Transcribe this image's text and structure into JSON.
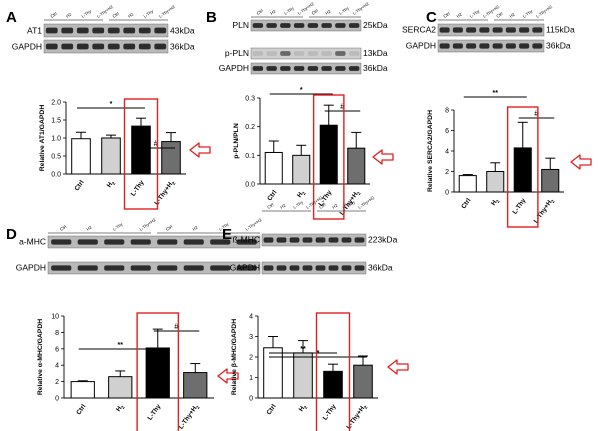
{
  "chart_data": [
    {
      "panel": "A",
      "type": "bar",
      "categories": [
        "Ctrl",
        "H2",
        "L-Thy",
        "L-Thy+H2"
      ],
      "values": [
        0.98,
        1.0,
        1.33,
        0.9
      ],
      "errors": [
        0.18,
        0.08,
        0.22,
        0.25
      ],
      "ylabel": "Relative AT1/GAPDH",
      "ylim": [
        0,
        2.0
      ],
      "yticks": [
        "0.0",
        "0.5",
        "1.0",
        "1.5",
        "2.0"
      ],
      "significance": [
        {
          "from": 0,
          "to": 2,
          "label": "*"
        },
        {
          "from": 2,
          "to": 3,
          "label": "#"
        }
      ],
      "blots": [
        {
          "label": "AT1",
          "size": "43kDa"
        },
        {
          "label": "GAPDH",
          "size": "36kDa"
        }
      ],
      "lane_labels": [
        "Ctrl",
        "H2",
        "L-Thy",
        "L-Thy+H2",
        "Ctrl",
        "H2",
        "L-Thy",
        "L-Thy+H2"
      ],
      "highlight_index": 2,
      "arrow_index": 3
    },
    {
      "panel": "B",
      "type": "bar",
      "categories": [
        "Ctrl",
        "H2",
        "L-Thy",
        "L-Thy+H2"
      ],
      "values": [
        0.11,
        0.1,
        0.205,
        0.125
      ],
      "errors": [
        0.04,
        0.035,
        0.07,
        0.055
      ],
      "ylabel": "p-PLN/PLN",
      "ylim": [
        0,
        0.3
      ],
      "yticks": [
        "0.0",
        "0.1",
        "0.2",
        "0.3"
      ],
      "significance": [
        {
          "from": 0,
          "to": 2,
          "label": "*"
        },
        {
          "from": 2,
          "to": 3,
          "label": "#"
        }
      ],
      "blots": [
        {
          "label": "PLN",
          "size": "25kDa"
        },
        {
          "label": "p-PLN",
          "size": "13kDa"
        },
        {
          "label": "GAPDH",
          "size": "36kDa"
        }
      ],
      "lane_labels": [
        "Ctrl",
        "H2",
        "L-Thy",
        "L-Thy+H2",
        "Ctrl",
        "H2",
        "L-Thy",
        "L-Thy+H2"
      ],
      "highlight_index": 2,
      "arrow_index": 3
    },
    {
      "panel": "C",
      "type": "bar",
      "categories": [
        "Ctrl",
        "H2",
        "L-Thy",
        "L-Thy+H2"
      ],
      "values": [
        1.6,
        2.0,
        4.3,
        2.2
      ],
      "errors": [
        0.1,
        0.85,
        2.5,
        1.1
      ],
      "ylabel": "Relative SERCA2/GAPDH",
      "ylim": [
        0,
        8
      ],
      "yticks": [
        "0",
        "2",
        "4",
        "6",
        "8"
      ],
      "significance": [
        {
          "from": 0,
          "to": 2,
          "label": "**"
        },
        {
          "from": 2,
          "to": 3,
          "label": "#"
        }
      ],
      "blots": [
        {
          "label": "SERCA2",
          "size": "115kDa"
        },
        {
          "label": "GAPDH",
          "size": "36kDa"
        }
      ],
      "lane_labels": [
        "Ctrl",
        "H2",
        "L-Thy",
        "L-Thy+H2",
        "Ctrl",
        "H2",
        "L-Thy",
        "L-Thy+H2"
      ],
      "highlight_index": 2,
      "arrow_index": 3
    },
    {
      "panel": "D",
      "type": "bar",
      "categories": [
        "Ctrl",
        "H2",
        "L-Thy",
        "L-Thy+H2"
      ],
      "values": [
        2.0,
        2.6,
        6.1,
        3.1
      ],
      "errors": [
        0.1,
        0.7,
        2.3,
        1.1
      ],
      "ylabel": "Relative α-MHC/GAPDH",
      "ylim": [
        0,
        10
      ],
      "yticks": [
        "0",
        "2",
        "4",
        "6",
        "8",
        "10"
      ],
      "significance": [
        {
          "from": 0,
          "to": 2,
          "label": "**"
        },
        {
          "from": 2,
          "to": 3,
          "label": "#"
        }
      ],
      "blots": [
        {
          "label": "a-MHC",
          "size": "223kDa"
        },
        {
          "label": "GAPDH",
          "size": "36kDa"
        }
      ],
      "lane_labels": [
        "Ctrl",
        "H2",
        "L-Thy",
        "L-Thy+H2",
        "Ctrl",
        "H2",
        "L-Thy",
        "L-Thy+H2"
      ],
      "highlight_index": 2,
      "arrow_index": 3
    },
    {
      "panel": "E",
      "type": "bar",
      "categories": [
        "Ctrl",
        "H2",
        "L-Thy",
        "L-Thy+H2"
      ],
      "values": [
        2.45,
        2.2,
        1.3,
        1.6
      ],
      "errors": [
        0.55,
        0.6,
        0.35,
        0.45
      ],
      "ylabel": "Relative β-MHC/GAPDH",
      "ylim": [
        0,
        4
      ],
      "yticks": [
        "0",
        "1",
        "2",
        "3",
        "4"
      ],
      "significance": [
        {
          "from": 0,
          "to": 3,
          "label": "*"
        },
        {
          "from": 0,
          "to": 2,
          "label": "**"
        }
      ],
      "blots": [
        {
          "label": "ß-MHC",
          "size": "223kDa"
        },
        {
          "label": "GAPDH",
          "size": "36kDa"
        }
      ],
      "lane_labels": [
        "Ctrl",
        "H2",
        "L-Thy",
        "L-Thy+H2",
        "Ctrl",
        "H2",
        "L-Thy",
        "L-Thy+H2"
      ],
      "highlight_index": 2,
      "arrow_index": 3
    }
  ],
  "colors": {
    "bars": [
      "#ffffff",
      "#d0d0d0",
      "#000000",
      "#6e6e6e"
    ],
    "highlight": "#e02020",
    "axis": "#000000"
  }
}
